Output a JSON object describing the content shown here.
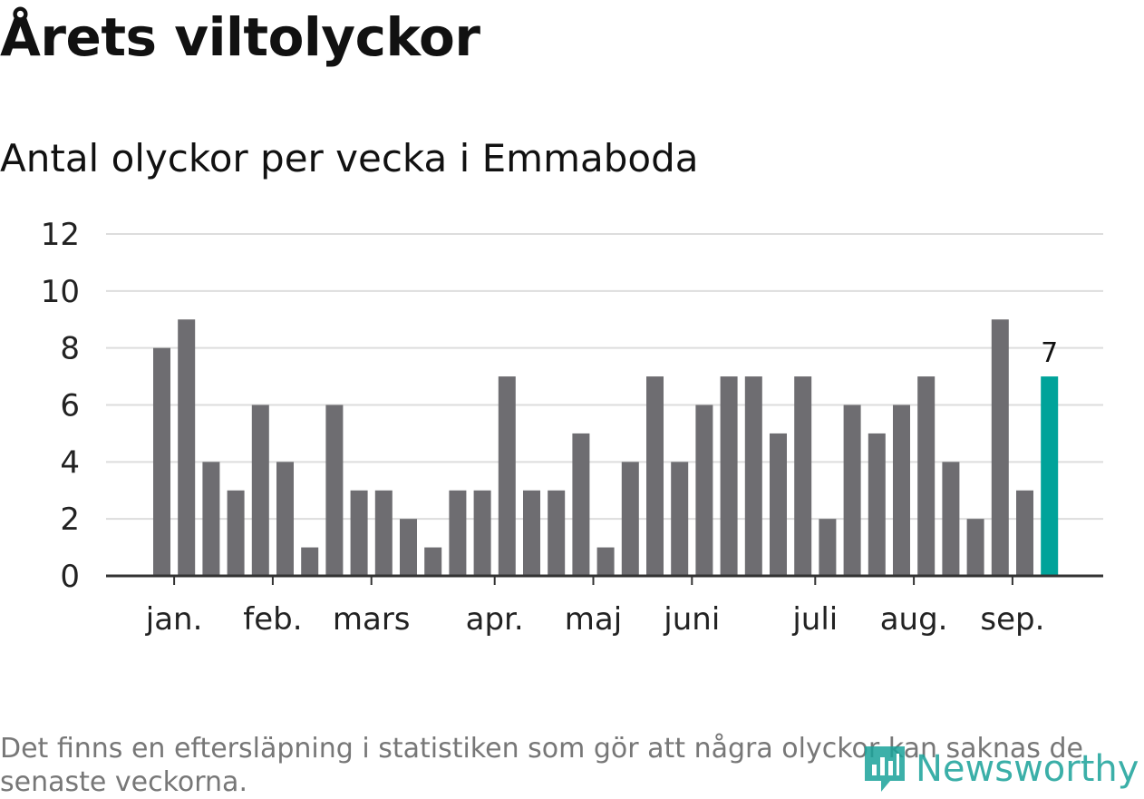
{
  "header": {
    "title": "Årets viltolyckor",
    "subtitle": "Antal olyckor per vecka i Emmaboda"
  },
  "footer": {
    "note": "Det finns en eftersläpning i statistiken som gör att några olyckor kan saknas de senaste veckorna.",
    "logo": "Newsworthy"
  },
  "colors": {
    "bar": "#6e6d71",
    "highlight": "#00a39a",
    "grid": "#dddddd",
    "axis": "#333333"
  },
  "chart_data": {
    "type": "bar",
    "values": [
      8,
      9,
      4,
      3,
      6,
      4,
      1,
      6,
      3,
      3,
      2,
      1,
      3,
      3,
      7,
      3,
      3,
      5,
      1,
      4,
      7,
      4,
      6,
      7,
      7,
      5,
      7,
      2,
      6,
      5,
      6,
      7,
      4,
      2,
      9,
      3,
      7
    ],
    "highlight_last": true,
    "last_label": "7",
    "yticks": [
      "0",
      "2",
      "4",
      "6",
      "8",
      "10",
      "12"
    ],
    "ylim": [
      0,
      12
    ],
    "month_labels": [
      {
        "label": "jan.",
        "week": 0.5
      },
      {
        "label": "feb.",
        "week": 4.5
      },
      {
        "label": "mars",
        "week": 8.5
      },
      {
        "label": "apr.",
        "week": 13.5
      },
      {
        "label": "maj",
        "week": 17.5
      },
      {
        "label": "juni",
        "week": 21.5
      },
      {
        "label": "juli",
        "week": 26.5
      },
      {
        "label": "aug.",
        "week": 30.5
      },
      {
        "label": "sep.",
        "week": 34.5
      }
    ],
    "grid": true
  }
}
